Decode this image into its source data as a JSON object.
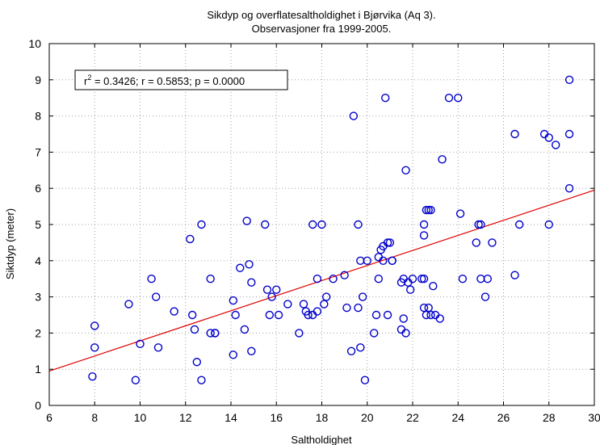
{
  "chart_data": {
    "type": "scatter",
    "title": "Sikdyp og overflatesaltholdighet i Bjørvika (Aq 3).",
    "subtitle": "Observasjoner fra 1999-2005.",
    "xlabel": "Saltholdighet",
    "ylabel": "Siktdyp (meter)",
    "xlim": [
      6,
      30
    ],
    "ylim": [
      0,
      10
    ],
    "xticks": [
      6,
      8,
      10,
      12,
      14,
      16,
      18,
      20,
      22,
      24,
      26,
      28,
      30
    ],
    "yticks": [
      0,
      1,
      2,
      3,
      4,
      5,
      6,
      7,
      8,
      9,
      10
    ],
    "grid": true,
    "annotation": {
      "r2_label": "r",
      "r2_sup": "2",
      "text": " = 0.3426;  r = 0.5853; p = 0.0000"
    },
    "fit_line": {
      "x": [
        6,
        30
      ],
      "y": [
        0.95,
        5.95
      ],
      "color": "#e00000"
    },
    "marker_color": "#0000cc",
    "series": [
      {
        "x": [
          7.9,
          8.0,
          8.0,
          9.5,
          9.8,
          10.0,
          10.5,
          10.7,
          10.8,
          11.5,
          12.2,
          12.3,
          12.4,
          12.5,
          12.7,
          12.7,
          13.1,
          13.1,
          13.3,
          13.3,
          14.1,
          14.1,
          14.2,
          14.4,
          14.6,
          14.7,
          14.8,
          14.9,
          14.9,
          15.5,
          15.6,
          15.7,
          15.8,
          16.0,
          16.1,
          16.5,
          17.0,
          17.2,
          17.3,
          17.4,
          17.6,
          17.6,
          17.8,
          17.8,
          18.0,
          18.1,
          18.2,
          18.5,
          19.0,
          19.1,
          19.3,
          19.4,
          19.6,
          19.6,
          19.7,
          19.7,
          19.8,
          19.9,
          20.0,
          20.3,
          20.4,
          20.5,
          20.5,
          20.6,
          20.7,
          20.7,
          20.8,
          20.9,
          20.9,
          21.0,
          21.1,
          21.1,
          21.5,
          21.5,
          21.6,
          21.6,
          21.7,
          21.7,
          21.8,
          21.9,
          22.0,
          22.4,
          22.5,
          22.5,
          22.5,
          22.5,
          22.6,
          22.6,
          22.7,
          22.7,
          22.8,
          22.8,
          22.9,
          23.0,
          23.2,
          23.3,
          23.6,
          24.0,
          24.1,
          24.2,
          24.8,
          24.9,
          25.0,
          25.0,
          25.2,
          25.3,
          25.5,
          26.5,
          26.5,
          26.7,
          27.8,
          28.0,
          28.0,
          28.3,
          28.9,
          28.9,
          28.9
        ],
        "y": [
          0.8,
          2.2,
          1.6,
          2.8,
          0.7,
          1.7,
          3.5,
          3.0,
          1.6,
          2.6,
          4.6,
          2.5,
          2.1,
          1.2,
          5.0,
          0.7,
          3.5,
          2.0,
          2.0,
          2.0,
          2.9,
          1.4,
          2.5,
          3.8,
          2.1,
          5.1,
          3.9,
          3.4,
          1.5,
          5.0,
          3.2,
          2.5,
          3.0,
          3.2,
          2.5,
          2.8,
          2.0,
          2.8,
          2.6,
          2.5,
          5.0,
          2.5,
          2.6,
          3.5,
          5.0,
          2.8,
          3.0,
          3.5,
          3.6,
          2.7,
          1.5,
          8.0,
          5.0,
          2.7,
          4.0,
          1.6,
          3.0,
          0.7,
          4.0,
          2.0,
          2.5,
          3.5,
          4.1,
          4.3,
          4.4,
          4.0,
          8.5,
          4.5,
          2.5,
          4.5,
          4.0,
          4.0,
          3.4,
          2.1,
          3.5,
          2.4,
          2.0,
          6.5,
          3.4,
          3.2,
          3.5,
          3.5,
          2.7,
          5.0,
          4.7,
          3.5,
          2.5,
          5.4,
          2.7,
          5.4,
          5.4,
          2.5,
          3.3,
          2.5,
          2.4,
          6.8,
          8.5,
          8.5,
          5.3,
          3.5,
          4.5,
          5.0,
          3.5,
          5.0,
          3.0,
          3.5,
          4.5,
          7.5,
          3.6,
          5.0,
          7.5,
          7.4,
          5.0,
          7.2,
          9.0,
          7.5,
          6.0
        ]
      }
    ]
  }
}
